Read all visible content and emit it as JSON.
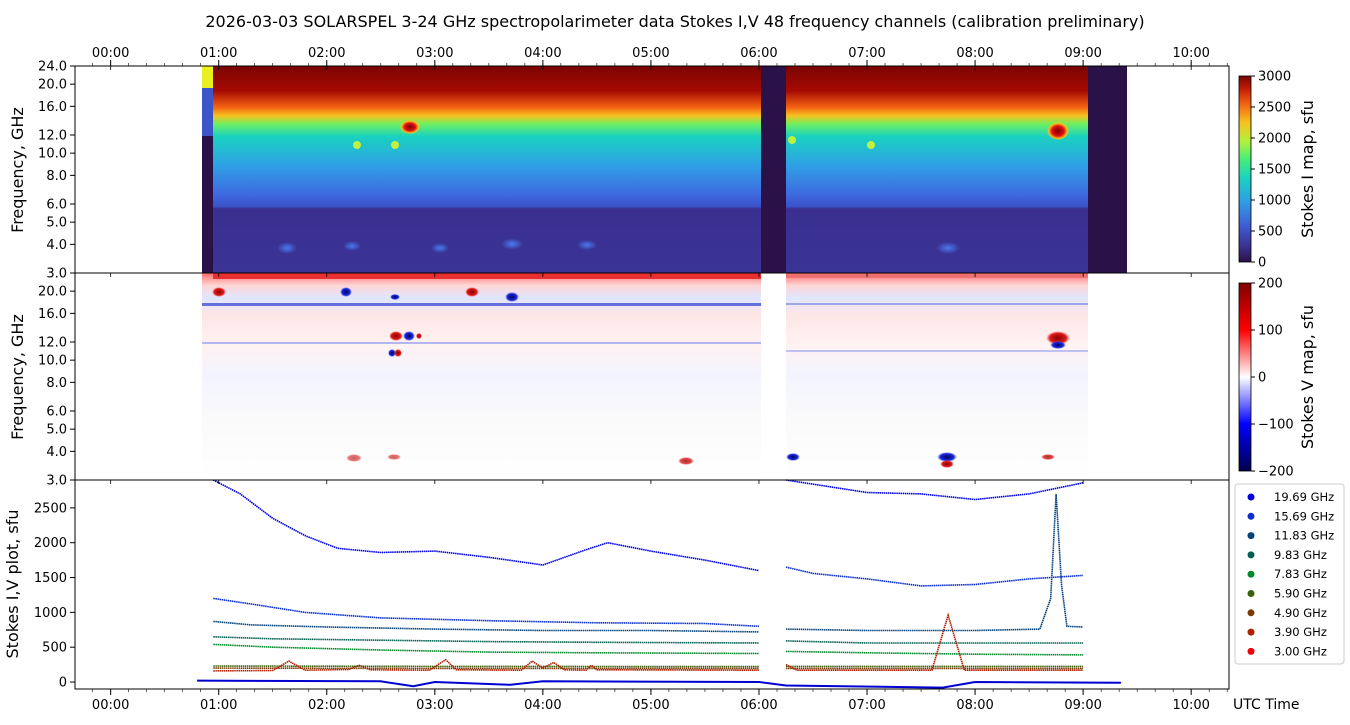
{
  "chart_data": {
    "title": "2026-03-03  SOLARSPEL  3-24 GHz spectropolarimeter data   Stokes I,V   48 frequency channels   (calibration preliminary)",
    "x_axis": {
      "label": "UTC Time",
      "range_hours": [
        -0.33,
        10.35
      ],
      "ticks": [
        {
          "h": 0,
          "label": "00:00"
        },
        {
          "h": 1,
          "label": "01:00"
        },
        {
          "h": 2,
          "label": "02:00"
        },
        {
          "h": 3,
          "label": "03:00"
        },
        {
          "h": 4,
          "label": "04:00"
        },
        {
          "h": 5,
          "label": "05:00"
        },
        {
          "h": 6,
          "label": "06:00"
        },
        {
          "h": 7,
          "label": "07:00"
        },
        {
          "h": 8,
          "label": "08:00"
        },
        {
          "h": 9,
          "label": "09:00"
        },
        {
          "h": 10,
          "label": "10:00"
        }
      ]
    },
    "panels": [
      {
        "id": "stokes-i-map",
        "type": "heatmap",
        "ylabel": "Frequency, GHz",
        "yscale": "log",
        "ylim": [
          3.0,
          24.0
        ],
        "yticks": [
          "24.0",
          "20.0",
          "16.0",
          "12.0",
          "10.0",
          "8.0",
          "6.0",
          "5.0",
          "4.0",
          "3.0"
        ],
        "colorbar": {
          "label": "Stokes I map, sfu",
          "range": [
            0,
            3000
          ],
          "ticks": [
            "3000",
            "2500",
            "2000",
            "1500",
            "1000",
            "500",
            "0"
          ]
        },
        "data_gaps_h": [
          [
            6.0,
            6.25
          ],
          [
            9.02,
            9.38
          ]
        ]
      },
      {
        "id": "stokes-v-map",
        "type": "heatmap",
        "ylabel": "Frequency, GHz",
        "yscale": "log",
        "ylim": [
          3.0,
          24.0
        ],
        "yticks": [
          "20.0",
          "16.0",
          "12.0",
          "10.0",
          "8.0",
          "6.0",
          "5.0",
          "4.0",
          "3.0"
        ],
        "colorbar": {
          "label": "Stokes V map, sfu",
          "range": [
            -200,
            200
          ],
          "ticks": [
            "200",
            "100",
            "0",
            "−100",
            "−200"
          ]
        }
      },
      {
        "id": "stokes-iv-plot",
        "type": "line",
        "ylabel": "Stokes I,V plot, sfu",
        "ylim": [
          -100,
          2900
        ],
        "yticks": [
          "2500",
          "2000",
          "1500",
          "1000",
          "500",
          "0"
        ],
        "series": [
          {
            "name": "19.69 GHz",
            "color": "#0000e0",
            "points": [
              [
                0.95,
                2900
              ],
              [
                1.2,
                2700
              ],
              [
                1.5,
                2350
              ],
              [
                1.8,
                2100
              ],
              [
                2.1,
                1920
              ],
              [
                2.5,
                1860
              ],
              [
                3.0,
                1880
              ],
              [
                3.5,
                1790
              ],
              [
                4.0,
                1680
              ],
              [
                4.4,
                1900
              ],
              [
                4.6,
                2000
              ],
              [
                5.0,
                1880
              ],
              [
                5.5,
                1750
              ],
              [
                6.0,
                1600
              ],
              [
                6.25,
                2900
              ],
              [
                7.0,
                2720
              ],
              [
                7.5,
                2700
              ],
              [
                8.0,
                2620
              ],
              [
                8.5,
                2700
              ],
              [
                9.0,
                2860
              ]
            ]
          },
          {
            "name": "15.69 GHz",
            "color": "#0a2fc8",
            "points": [
              [
                0.95,
                1200
              ],
              [
                1.3,
                1120
              ],
              [
                1.8,
                1000
              ],
              [
                2.5,
                920
              ],
              [
                3.5,
                880
              ],
              [
                4.5,
                850
              ],
              [
                5.5,
                840
              ],
              [
                6.0,
                800
              ],
              [
                6.25,
                1650
              ],
              [
                6.5,
                1560
              ],
              [
                7.0,
                1480
              ],
              [
                7.5,
                1380
              ],
              [
                8.0,
                1400
              ],
              [
                8.5,
                1480
              ],
              [
                9.0,
                1530
              ]
            ]
          },
          {
            "name": "11.83 GHz",
            "color": "#05437a",
            "points": [
              [
                0.95,
                870
              ],
              [
                1.3,
                820
              ],
              [
                2.0,
                790
              ],
              [
                3.0,
                760
              ],
              [
                4.0,
                740
              ],
              [
                5.0,
                740
              ],
              [
                6.0,
                720
              ],
              [
                6.25,
                760
              ],
              [
                7.0,
                740
              ],
              [
                8.0,
                740
              ],
              [
                8.6,
                760
              ],
              [
                8.7,
                1200
              ],
              [
                8.75,
                2700
              ],
              [
                8.8,
                1400
              ],
              [
                8.85,
                800
              ],
              [
                9.0,
                790
              ]
            ]
          },
          {
            "name": "9.83 GHz",
            "color": "#006050",
            "points": [
              [
                0.95,
                650
              ],
              [
                1.5,
                620
              ],
              [
                2.5,
                600
              ],
              [
                3.5,
                580
              ],
              [
                4.5,
                570
              ],
              [
                6.0,
                560
              ],
              [
                6.25,
                590
              ],
              [
                7.0,
                560
              ],
              [
                8.0,
                560
              ],
              [
                9.0,
                560
              ]
            ]
          },
          {
            "name": "7.83 GHz",
            "color": "#00882a",
            "points": [
              [
                0.95,
                540
              ],
              [
                1.5,
                500
              ],
              [
                2.5,
                460
              ],
              [
                3.5,
                430
              ],
              [
                4.5,
                420
              ],
              [
                6.0,
                410
              ],
              [
                6.25,
                440
              ],
              [
                7.0,
                420
              ],
              [
                8.0,
                400
              ],
              [
                9.0,
                390
              ]
            ]
          },
          {
            "name": "5.90 GHz",
            "color": "#3c6010",
            "points": [
              [
                0.95,
                230
              ],
              [
                3.0,
                225
              ],
              [
                6.0,
                222
              ],
              [
                6.25,
                225
              ],
              [
                9.0,
                225
              ]
            ]
          },
          {
            "name": "4.90 GHz",
            "color": "#7a3a00",
            "points": [
              [
                0.95,
                200
              ],
              [
                3.0,
                195
              ],
              [
                6.0,
                195
              ],
              [
                6.25,
                195
              ],
              [
                9.0,
                195
              ]
            ]
          },
          {
            "name": "3.90 GHz",
            "color": "#b02000",
            "points": [
              [
                0.95,
                160
              ],
              [
                1.5,
                165
              ],
              [
                1.65,
                300
              ],
              [
                1.8,
                170
              ],
              [
                2.2,
                180
              ],
              [
                2.3,
                240
              ],
              [
                2.4,
                175
              ],
              [
                2.95,
                170
              ],
              [
                3.1,
                320
              ],
              [
                3.2,
                175
              ],
              [
                3.8,
                170
              ],
              [
                3.9,
                300
              ],
              [
                4.0,
                200
              ],
              [
                4.1,
                280
              ],
              [
                4.2,
                175
              ],
              [
                4.4,
                170
              ],
              [
                4.45,
                240
              ],
              [
                4.5,
                175
              ],
              [
                6.0,
                170
              ],
              [
                6.25,
                250
              ],
              [
                6.35,
                170
              ],
              [
                7.6,
                170
              ],
              [
                7.75,
                960
              ],
              [
                7.9,
                170
              ],
              [
                9.0,
                170
              ]
            ]
          },
          {
            "name": "3.00 GHz",
            "color": "#ee0000",
            "points": [
              [
                0.95,
                150
              ],
              [
                9.0,
                150
              ]
            ]
          }
        ],
        "v_traces": {
          "color": "#0000d0",
          "values_sfu": [
            [
              0.8,
              20
            ],
            [
              2.5,
              10
            ],
            [
              2.8,
              -60
            ],
            [
              3.0,
              0
            ],
            [
              3.7,
              -40
            ],
            [
              4.0,
              10
            ],
            [
              6.0,
              0
            ],
            [
              6.25,
              -50
            ],
            [
              7.7,
              -80
            ],
            [
              8.0,
              0
            ],
            [
              9.35,
              -10
            ]
          ]
        }
      }
    ],
    "legend": {
      "placement": "right-bottom"
    }
  }
}
